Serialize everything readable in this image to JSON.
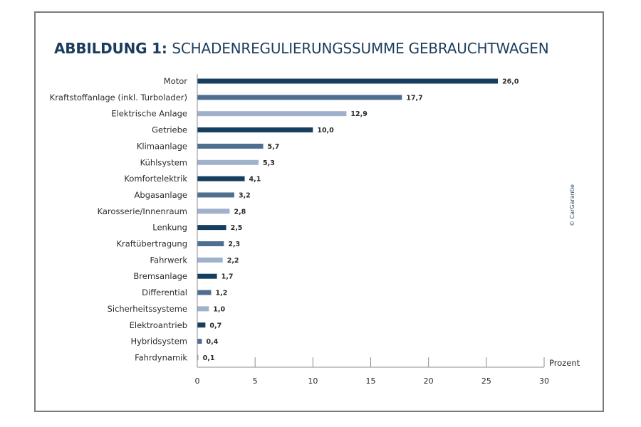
{
  "chart_data": {
    "type": "bar",
    "orientation": "horizontal",
    "title_bold": "ABBILDUNG 1:",
    "title_rest": "SCHADENREGULIERUNGSSUMME GEBRAUCHTWAGEN",
    "xlabel": "Prozent",
    "ylabel": "",
    "xlim": [
      0,
      30
    ],
    "ticks": [
      0,
      5,
      10,
      15,
      20,
      25,
      30
    ],
    "tick_labels": [
      "0",
      "5",
      "10",
      "15",
      "20",
      "25",
      "30"
    ],
    "categories": [
      "Motor",
      "Kraftstoffanlage (inkl. Turbolader)",
      "Elektrische Anlage",
      "Getriebe",
      "Klimaanlage",
      "Kühlsystem",
      "Komfortelektrik",
      "Abgasanlage",
      "Karosserie/Innenraum",
      "Lenkung",
      "Kraftübertragung",
      "Fahrwerk",
      "Bremsanlage",
      "Differential",
      "Sicherheitssysteme",
      "Elektroantrieb",
      "Hybridsystem",
      "Fahrdynamik"
    ],
    "values": [
      26.0,
      17.7,
      12.9,
      10.0,
      5.7,
      5.3,
      4.1,
      3.2,
      2.8,
      2.5,
      2.3,
      2.2,
      1.7,
      1.2,
      1.0,
      0.7,
      0.4,
      0.1
    ],
    "value_labels": [
      "26,0",
      "17,7",
      "12,9",
      "10,0",
      "5,7",
      "5,3",
      "4,1",
      "3,2",
      "2,8",
      "2,5",
      "2,3",
      "2,2",
      "1,7",
      "1,2",
      "1,0",
      "0,7",
      "0,4",
      "0,1"
    ],
    "bar_colors": [
      "#163e5f",
      "#4f6f91",
      "#9fb1cb"
    ],
    "grid": false,
    "legend": "none",
    "copyright": "© CarGarantie"
  },
  "colors": {
    "title": "#1b3d5d",
    "label": "#2c2c2c",
    "axis": "#8c8c8c",
    "value_label": "#2a2a2a",
    "copyright": "#1b3d5d"
  }
}
